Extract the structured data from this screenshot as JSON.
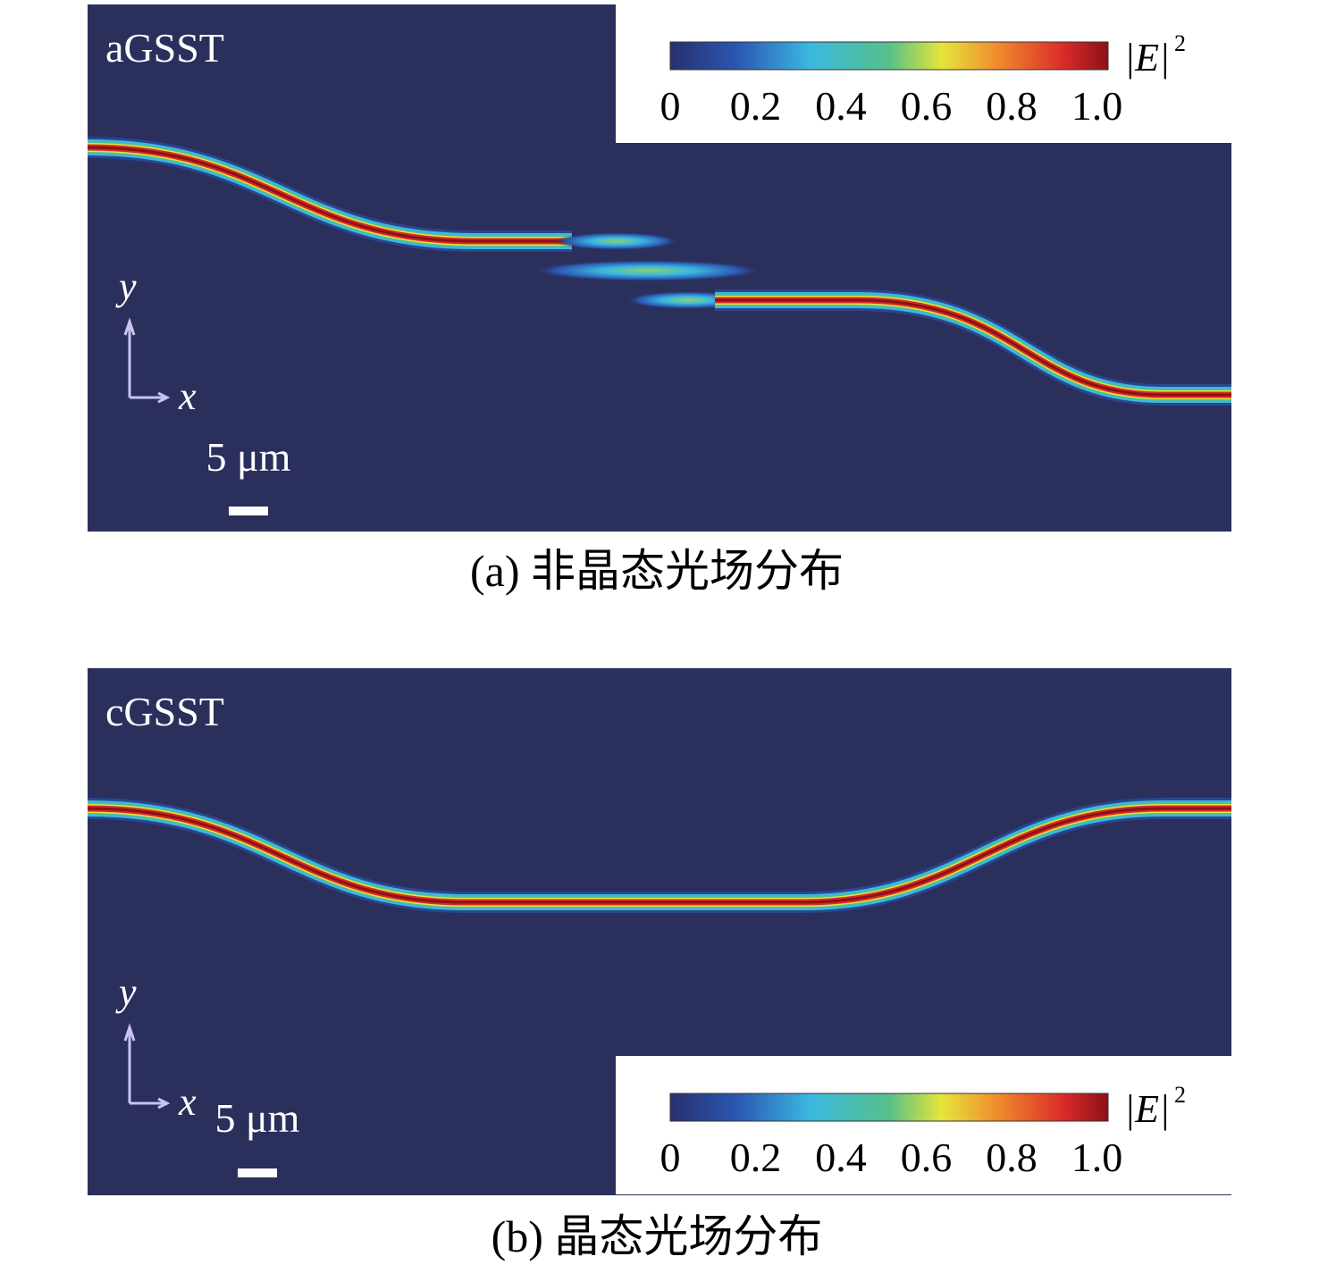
{
  "panels": [
    {
      "label": "aGSST",
      "colorbar": {
        "quantity": "|E|",
        "exponent": "2",
        "ticks": [
          "0",
          "0.2",
          "0.4",
          "0.6",
          "0.8",
          "1.0"
        ]
      },
      "axes": {
        "y": "y",
        "x": "x"
      },
      "scale_bar": "5 μm",
      "caption": "(a) 非晶态光场分布"
    },
    {
      "label": "cGSST",
      "colorbar": {
        "quantity": "|E|",
        "exponent": "2",
        "ticks": [
          "0",
          "0.2",
          "0.4",
          "0.6",
          "0.8",
          "1.0"
        ]
      },
      "axes": {
        "y": "y",
        "x": "x"
      },
      "scale_bar": "5 μm",
      "caption": "(b) 晶态光场分布"
    }
  ]
}
